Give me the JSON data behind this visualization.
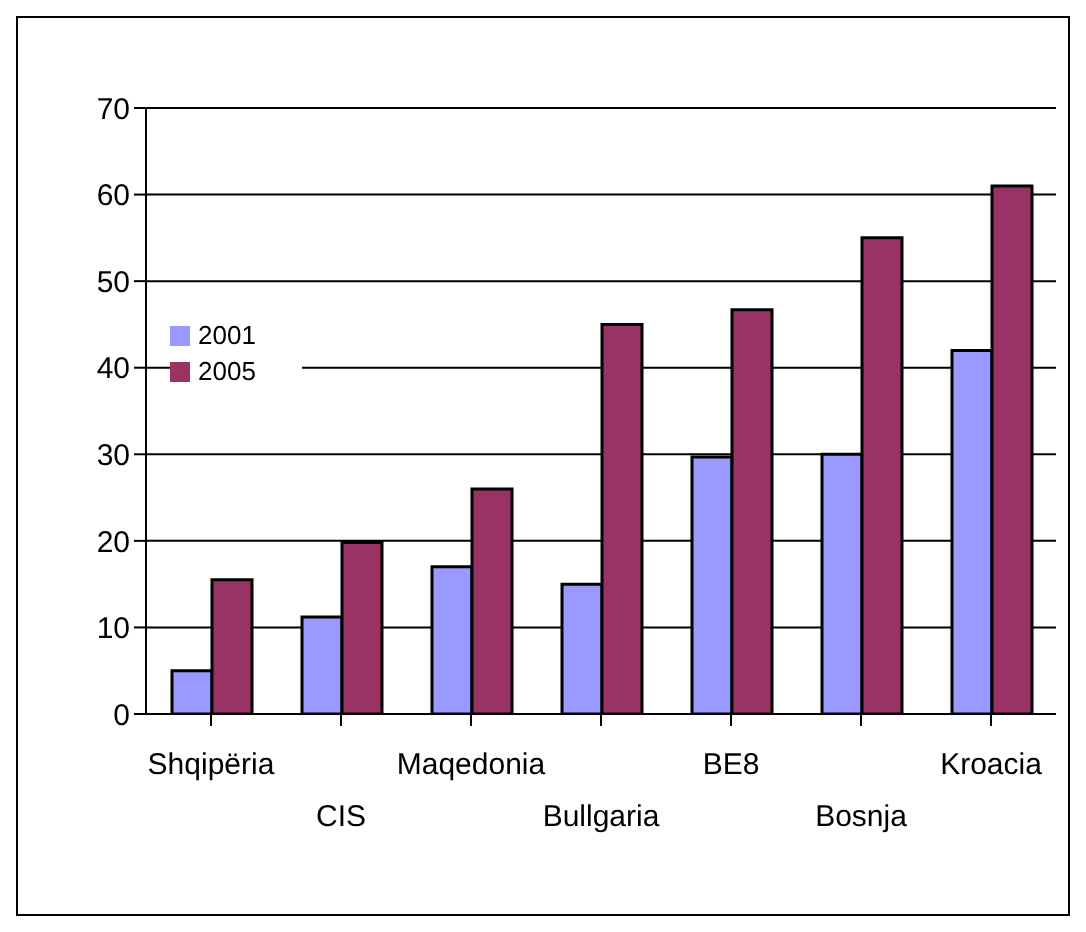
{
  "chart_data": {
    "type": "bar",
    "categories": [
      "Shqipëria",
      "CIS",
      "Maqedonia",
      "Bullgaria",
      "BE8",
      "Bosnja",
      "Kroacia"
    ],
    "series": [
      {
        "name": "2001",
        "color": "#9999ff",
        "values": [
          5,
          11.2,
          17,
          15,
          29.7,
          30,
          42
        ]
      },
      {
        "name": "2005",
        "color": "#993366",
        "values": [
          15.5,
          19.8,
          26,
          45,
          46.7,
          55,
          61
        ]
      }
    ],
    "ylim": [
      0,
      70
    ],
    "yticks": [
      0,
      10,
      20,
      30,
      40,
      50,
      60,
      70
    ],
    "grid": "y",
    "legend": "left"
  }
}
